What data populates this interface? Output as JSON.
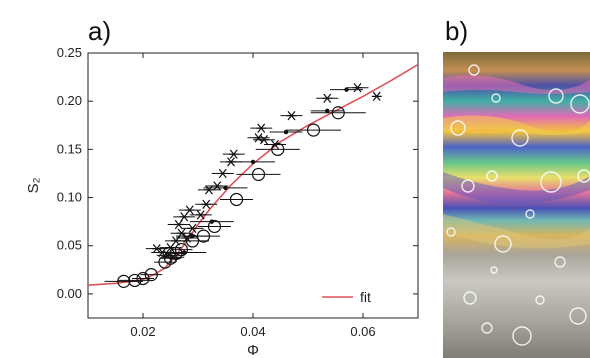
{
  "panel_a": {
    "label": "a)"
  },
  "panel_b": {
    "label": "b)",
    "image": "photo of air bubbles under a thin film with iridescent rainbow interference colors"
  },
  "chart_data": {
    "type": "scatter",
    "xlabel": "Φ",
    "ylabel": "S₂",
    "xlim": [
      0.01,
      0.07
    ],
    "ylim": [
      -0.025,
      0.25
    ],
    "xticks": [
      0.02,
      0.04,
      0.06
    ],
    "xtick_labels": [
      "0.02",
      "0.04",
      "0.06"
    ],
    "yticks": [
      0.0,
      0.05,
      0.1,
      0.15,
      0.2,
      0.25
    ],
    "ytick_labels": [
      "0.00",
      "0.05",
      "0.10",
      "0.15",
      "0.20",
      "0.25"
    ],
    "legend": {
      "position": "bottom-right",
      "entries": [
        "fit"
      ]
    },
    "colors": {
      "fit": "#e0505a",
      "markers": "#111111"
    },
    "series": [
      {
        "marker": "circle",
        "points": [
          {
            "x": 0.0165,
            "y": 0.013,
            "xerr": 0.0035
          },
          {
            "x": 0.0185,
            "y": 0.014,
            "xerr": 0.003
          },
          {
            "x": 0.02,
            "y": 0.016,
            "xerr": 0.002
          },
          {
            "x": 0.0215,
            "y": 0.02,
            "xerr": 0.002
          },
          {
            "x": 0.024,
            "y": 0.033,
            "xerr": 0.002
          },
          {
            "x": 0.025,
            "y": 0.037,
            "xerr": 0.002
          },
          {
            "x": 0.026,
            "y": 0.042,
            "xerr": 0.002
          },
          {
            "x": 0.027,
            "y": 0.046,
            "xerr": 0.002
          },
          {
            "x": 0.029,
            "y": 0.055,
            "xerr": 0.003
          },
          {
            "x": 0.031,
            "y": 0.06,
            "xerr": 0.003
          },
          {
            "x": 0.033,
            "y": 0.07,
            "xerr": 0.003
          },
          {
            "x": 0.037,
            "y": 0.098,
            "xerr": 0.003
          },
          {
            "x": 0.041,
            "y": 0.124,
            "xerr": 0.004
          },
          {
            "x": 0.0445,
            "y": 0.15,
            "xerr": 0.004
          },
          {
            "x": 0.051,
            "y": 0.17,
            "xerr": 0.005
          },
          {
            "x": 0.0555,
            "y": 0.188,
            "xerr": 0.005
          }
        ]
      },
      {
        "marker": "star",
        "points": [
          {
            "x": 0.0225,
            "y": 0.047,
            "xerr": 0.002
          },
          {
            "x": 0.0235,
            "y": 0.043,
            "xerr": 0.002
          },
          {
            "x": 0.0245,
            "y": 0.04,
            "xerr": 0.002
          },
          {
            "x": 0.025,
            "y": 0.048,
            "xerr": 0.002
          },
          {
            "x": 0.0255,
            "y": 0.038,
            "xerr": 0.002
          },
          {
            "x": 0.026,
            "y": 0.055,
            "xerr": 0.002
          },
          {
            "x": 0.0265,
            "y": 0.072,
            "xerr": 0.002
          },
          {
            "x": 0.027,
            "y": 0.063,
            "xerr": 0.002
          },
          {
            "x": 0.0275,
            "y": 0.08,
            "xerr": 0.002
          },
          {
            "x": 0.028,
            "y": 0.058,
            "xerr": 0.002
          },
          {
            "x": 0.0285,
            "y": 0.087,
            "xerr": 0.002
          },
          {
            "x": 0.029,
            "y": 0.068,
            "xerr": 0.002
          },
          {
            "x": 0.0305,
            "y": 0.082,
            "xerr": 0.002
          },
          {
            "x": 0.0315,
            "y": 0.093,
            "xerr": 0.002
          },
          {
            "x": 0.032,
            "y": 0.108,
            "xerr": 0.002
          },
          {
            "x": 0.0335,
            "y": 0.112,
            "xerr": 0.002
          },
          {
            "x": 0.0345,
            "y": 0.125,
            "xerr": 0.002
          },
          {
            "x": 0.036,
            "y": 0.137,
            "xerr": 0.002
          },
          {
            "x": 0.0365,
            "y": 0.145,
            "xerr": 0.002
          },
          {
            "x": 0.041,
            "y": 0.162,
            "xerr": 0.002
          },
          {
            "x": 0.0415,
            "y": 0.172,
            "xerr": 0.002
          },
          {
            "x": 0.042,
            "y": 0.16,
            "xerr": 0.002
          },
          {
            "x": 0.044,
            "y": 0.155,
            "xerr": 0.002
          },
          {
            "x": 0.047,
            "y": 0.185,
            "xerr": 0.002
          },
          {
            "x": 0.0535,
            "y": 0.203,
            "xerr": 0.002
          },
          {
            "x": 0.059,
            "y": 0.214,
            "xerr": 0.002
          },
          {
            "x": 0.0625,
            "y": 0.205,
            "xerr": 0.0
          }
        ]
      },
      {
        "marker": "dot",
        "points": [
          {
            "x": 0.0275,
            "y": 0.043,
            "xerr": 0.004
          },
          {
            "x": 0.029,
            "y": 0.06,
            "xerr": 0.003
          },
          {
            "x": 0.0325,
            "y": 0.075,
            "xerr": 0.004
          },
          {
            "x": 0.035,
            "y": 0.11,
            "xerr": 0.004
          },
          {
            "x": 0.04,
            "y": 0.137,
            "xerr": 0.004
          },
          {
            "x": 0.046,
            "y": 0.168,
            "xerr": 0.003
          },
          {
            "x": 0.0535,
            "y": 0.19,
            "xerr": 0.003
          },
          {
            "x": 0.057,
            "y": 0.212,
            "xerr": 0.003
          }
        ]
      }
    ],
    "fit": {
      "name": "fit",
      "points": [
        [
          0.01,
          0.009
        ],
        [
          0.015,
          0.011
        ],
        [
          0.018,
          0.013
        ],
        [
          0.02,
          0.015
        ],
        [
          0.022,
          0.02
        ],
        [
          0.024,
          0.027
        ],
        [
          0.026,
          0.04
        ],
        [
          0.028,
          0.055
        ],
        [
          0.03,
          0.072
        ],
        [
          0.032,
          0.087
        ],
        [
          0.034,
          0.1
        ],
        [
          0.036,
          0.113
        ],
        [
          0.04,
          0.135
        ],
        [
          0.045,
          0.158
        ],
        [
          0.05,
          0.175
        ],
        [
          0.055,
          0.19
        ],
        [
          0.06,
          0.205
        ],
        [
          0.065,
          0.221
        ],
        [
          0.07,
          0.238
        ]
      ]
    }
  }
}
